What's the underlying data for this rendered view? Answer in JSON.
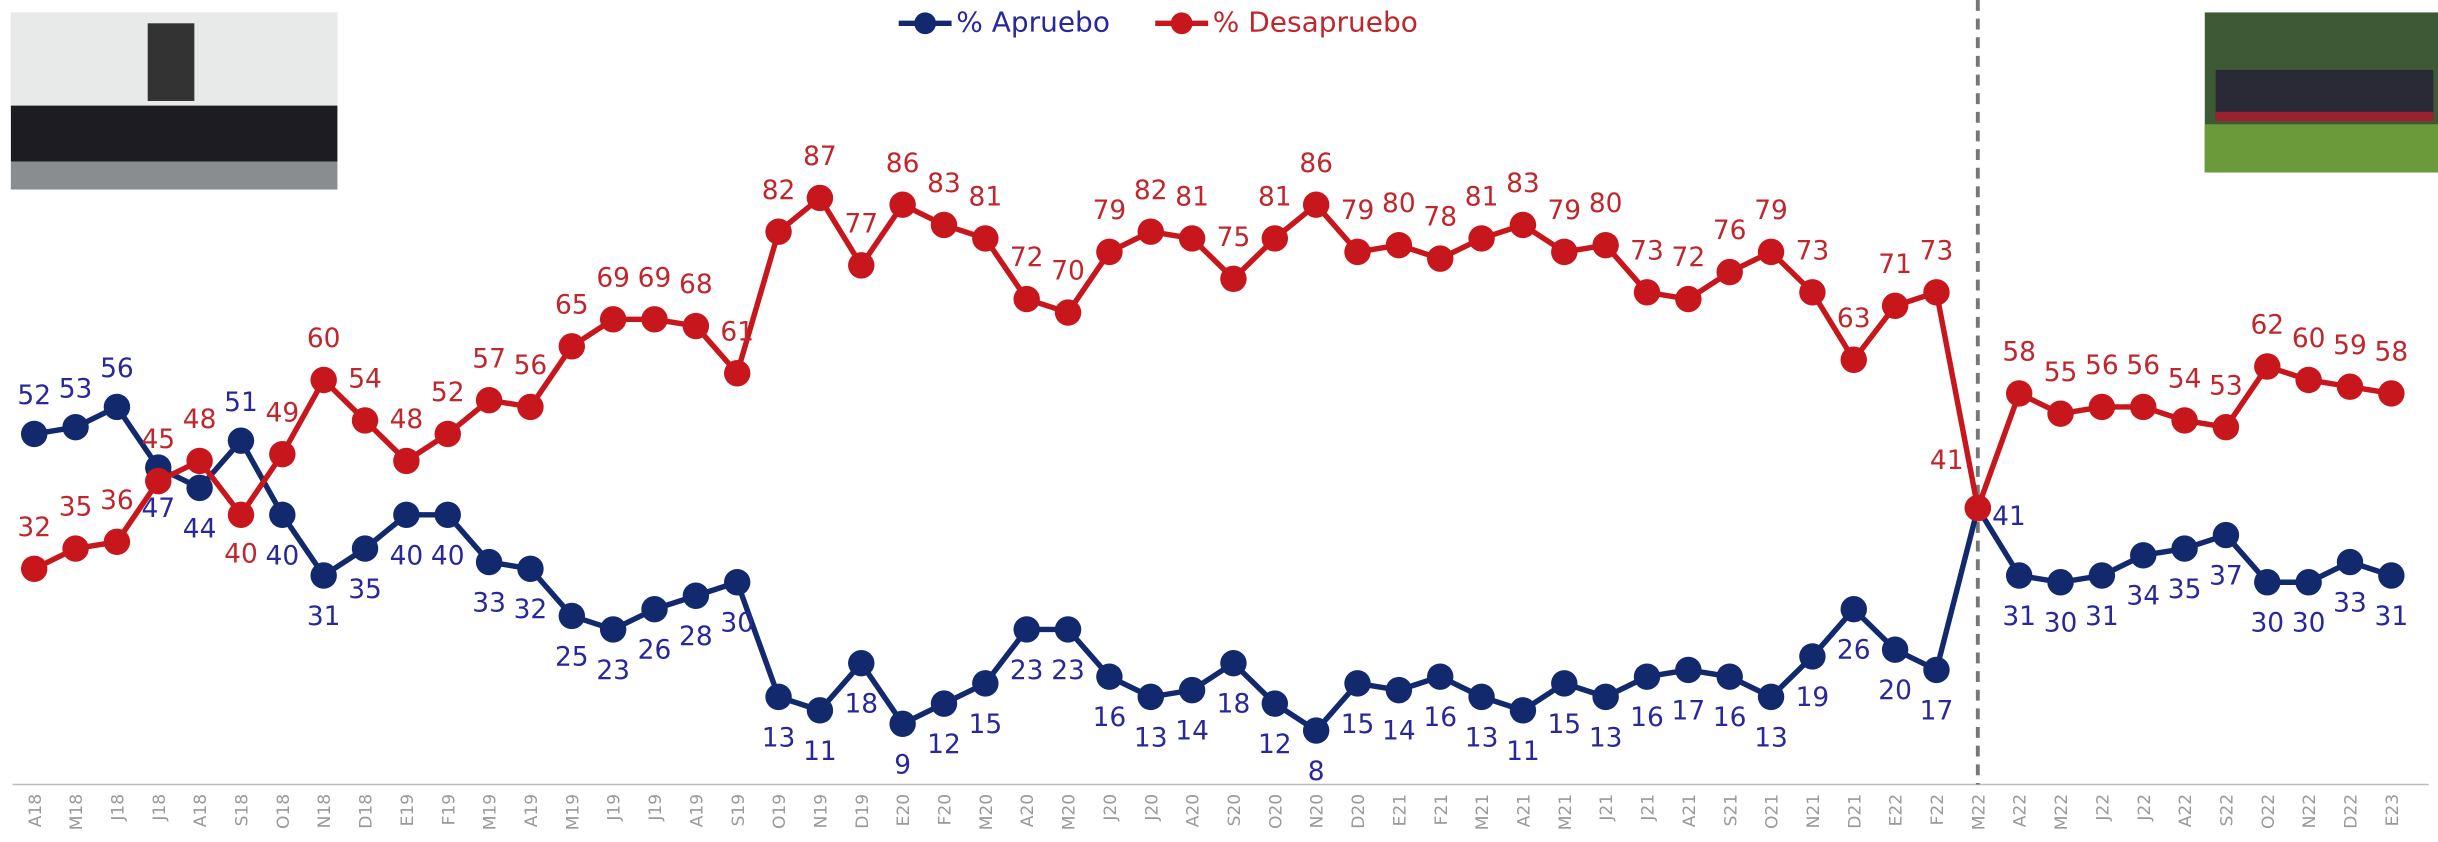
{
  "chart_data": {
    "type": "line",
    "categories": [
      "A18",
      "M18",
      "J18",
      "J18",
      "A18",
      "S18",
      "O18",
      "N18",
      "D18",
      "E19",
      "F19",
      "M19",
      "A19",
      "M19",
      "J19",
      "J19",
      "A19",
      "S19",
      "O19",
      "N19",
      "D19",
      "E20",
      "F20",
      "M20",
      "A20",
      "M20",
      "J20",
      "J20",
      "A20",
      "S20",
      "O20",
      "N20",
      "D20",
      "E21",
      "F21",
      "M21",
      "A21",
      "M21",
      "J21",
      "J21",
      "A21",
      "S21",
      "O21",
      "N21",
      "D21",
      "E22",
      "F22",
      "M22",
      "A22",
      "M22",
      "J22",
      "J22",
      "A22",
      "S22",
      "O22",
      "N22",
      "D22",
      "E23"
    ],
    "series": [
      {
        "name": "% Apruebo",
        "color": "#12296e",
        "values": [
          52,
          53,
          56,
          47,
          44,
          51,
          40,
          31,
          35,
          40,
          40,
          33,
          32,
          25,
          23,
          26,
          28,
          30,
          13,
          11,
          18,
          9,
          12,
          15,
          23,
          23,
          16,
          13,
          14,
          18,
          12,
          8,
          15,
          14,
          16,
          13,
          11,
          15,
          13,
          16,
          17,
          16,
          13,
          19,
          26,
          20,
          17,
          41,
          31,
          30,
          31,
          34,
          35,
          37,
          30,
          30,
          33,
          31
        ]
      },
      {
        "name": "% Desapruebo",
        "color": "#c8161d",
        "values": [
          32,
          35,
          36,
          45,
          48,
          40,
          49,
          60,
          54,
          48,
          52,
          57,
          56,
          65,
          69,
          69,
          68,
          61,
          82,
          87,
          77,
          86,
          83,
          81,
          72,
          70,
          79,
          82,
          81,
          75,
          81,
          86,
          79,
          80,
          78,
          81,
          83,
          79,
          80,
          73,
          72,
          76,
          79,
          73,
          63,
          71,
          73,
          41,
          58,
          55,
          56,
          56,
          54,
          53,
          62,
          60,
          59,
          58
        ]
      }
    ],
    "ylim": [
      0,
      100
    ]
  }
}
